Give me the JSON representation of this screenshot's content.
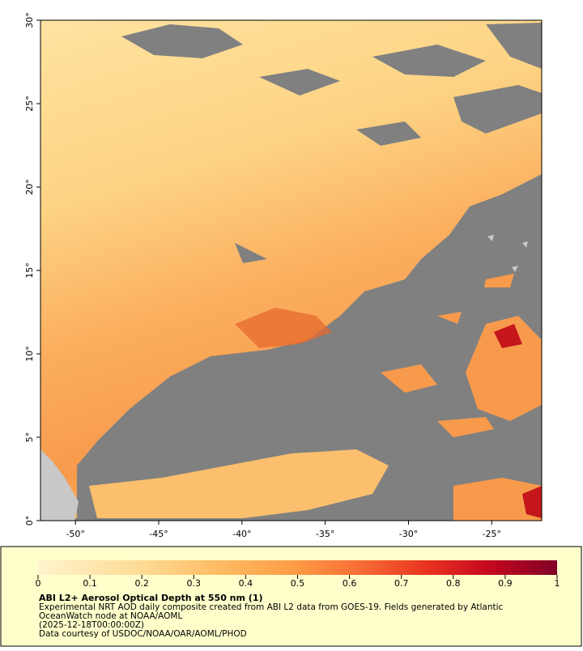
{
  "map": {
    "xlim": [
      -52.1,
      -22
    ],
    "ylim": [
      0,
      30
    ],
    "xticks": [
      {
        "value": -50,
        "label": "-50°"
      },
      {
        "value": -45,
        "label": "-45°"
      },
      {
        "value": -40,
        "label": "-40°"
      },
      {
        "value": -35,
        "label": "-35°"
      },
      {
        "value": -30,
        "label": "-30°"
      },
      {
        "value": -25,
        "label": "-25°"
      }
    ],
    "yticks": [
      {
        "value": 0,
        "label": "0°"
      },
      {
        "value": 5,
        "label": "5°"
      },
      {
        "value": 10,
        "label": "10°"
      },
      {
        "value": 15,
        "label": "15°"
      },
      {
        "value": 20,
        "label": "20°"
      },
      {
        "value": 25,
        "label": "25°"
      },
      {
        "value": 30,
        "label": "30°"
      }
    ]
  },
  "colorbar": {
    "range": [
      0,
      1
    ],
    "ticks": [
      0,
      0.1,
      0.2,
      0.3,
      0.4,
      0.5,
      0.6,
      0.7,
      0.8,
      0.9,
      1
    ]
  },
  "caption": {
    "title": "ABI L2+ Aerosol Optical Depth at 550 nm (1)",
    "lines": [
      "Experimental NRT AOD daily composite created from ABI L2 data from GOES-19. Fields generated by Atlantic",
      "OceanWatch node at NOAA/AOML",
      "(2025-12-18T00:00:00Z)",
      "Data courtesy of USDOC/NOAA/OAR/AOML/PHOD"
    ]
  }
}
